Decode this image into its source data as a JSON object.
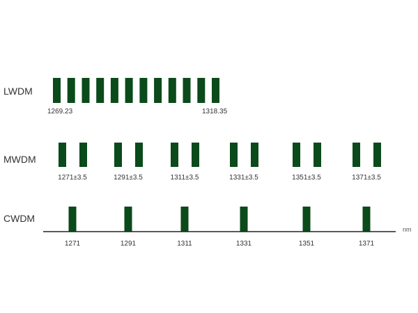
{
  "accent_color": "#0b4a1a",
  "axis_color": "#222222",
  "rows": {
    "lwdm": {
      "label": "LWDM",
      "channel_count": 12,
      "start_label": "1269.23",
      "end_label": "1318.35"
    },
    "mwdm": {
      "label": "MWDM",
      "groups": [
        "1271±3.5",
        "1291±3.5",
        "1311±3.5",
        "1331±3.5",
        "1351±3.5",
        "1371±3.5"
      ]
    },
    "cwdm": {
      "label": "CWDM",
      "channels": [
        "1271",
        "1291",
        "1311",
        "1331",
        "1351",
        "1371"
      ],
      "unit": "nm"
    }
  }
}
